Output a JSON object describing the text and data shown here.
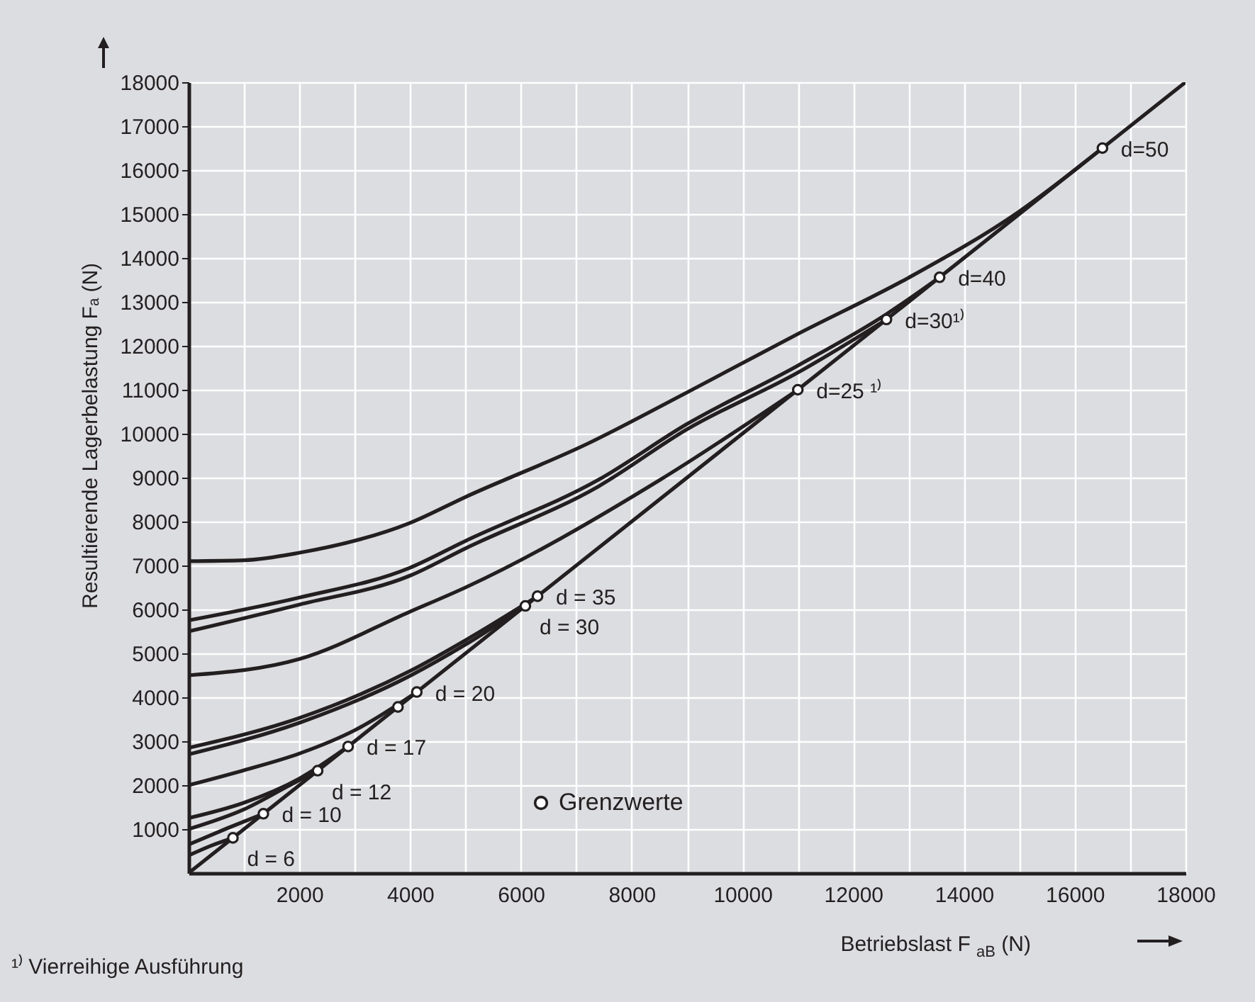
{
  "chart_data": {
    "type": "line",
    "xlabel": "Betriebslast  F$_{aB}$ (N)",
    "ylabel": "Resultierende Lagerbelastung  Fₐ (N)",
    "xlim": [
      0,
      18000
    ],
    "ylim": [
      0,
      18000
    ],
    "xticks": [
      {
        "value": 1000,
        "label": null
      },
      2000,
      {
        "value": 3000,
        "label": null
      },
      4000,
      {
        "value": 5000,
        "label": null
      },
      6000,
      {
        "value": 7000,
        "label": null
      },
      8000,
      {
        "value": 9000,
        "label": null
      },
      10000,
      {
        "value": 11000,
        "label": null
      },
      12000,
      {
        "value": 13000,
        "label": null
      },
      14000,
      {
        "value": 15000,
        "label": null
      },
      16000,
      {
        "value": 17000,
        "label": null
      },
      18000
    ],
    "yticks": [
      1000,
      2000,
      3000,
      4000,
      5000,
      6000,
      7000,
      8000,
      9000,
      10000,
      11000,
      12000,
      13000,
      14000,
      15000,
      16000,
      17000,
      18000
    ],
    "grid": true,
    "legend": "bottom",
    "line_style": "solid",
    "series": [
      {
        "color": "#231f20",
        "x": [
          0,
          18000
        ],
        "values": [
          0,
          18000
        ]
      },
      {
        "color": "#231f20",
        "x": [
          0,
          400,
          800
        ],
        "values": [
          400,
          620,
          800
        ]
      },
      {
        "color": "#231f20",
        "x": [
          0,
          700,
          1350
        ],
        "values": [
          650,
          1020,
          1350
        ]
      },
      {
        "color": "#231f20",
        "x": [
          0,
          1000,
          1800,
          2330
        ],
        "values": [
          1000,
          1450,
          1980,
          2330
        ]
      },
      {
        "color": "#231f20",
        "x": [
          0,
          1000,
          2000,
          2880
        ],
        "values": [
          1250,
          1600,
          2150,
          2880
        ]
      },
      {
        "color": "#231f20",
        "x": [
          0,
          1000,
          2000,
          3000,
          4120
        ],
        "values": [
          2000,
          2340,
          2720,
          3250,
          4120
        ]
      },
      {
        "color": "#231f20",
        "x": [
          0,
          2000,
          4000,
          5000,
          6080
        ],
        "values": [
          2700,
          3420,
          4490,
          5200,
          6080
        ]
      },
      {
        "color": "#231f20",
        "x": [
          0,
          2000,
          4000,
          5000,
          6300
        ],
        "values": [
          2850,
          3530,
          4600,
          5300,
          6300
        ]
      },
      {
        "color": "#231f20",
        "x": [
          0,
          2000,
          4000,
          5000,
          8500,
          11000
        ],
        "values": [
          4500,
          4870,
          5950,
          6500,
          8940,
          11000
        ]
      },
      {
        "color": "#231f20",
        "x": [
          0,
          2000,
          4000,
          5000,
          7400,
          9000,
          11000,
          12600
        ],
        "values": [
          5500,
          6110,
          6770,
          7390,
          8800,
          10100,
          11390,
          12600
        ]
      },
      {
        "color": "#231f20",
        "x": [
          0,
          2000,
          4000,
          5000,
          7400,
          9000,
          11000,
          12600,
          13560
        ],
        "values": [
          5750,
          6270,
          6950,
          7560,
          8950,
          10220,
          11550,
          12720,
          13560
        ]
      },
      {
        "color": "#231f20",
        "x": [
          0,
          1000,
          2000,
          4000,
          5000,
          7200,
          9000,
          11000,
          13000,
          15000,
          16500
        ],
        "values": [
          7100,
          7120,
          7290,
          7970,
          8560,
          9770,
          10940,
          12270,
          13550,
          15060,
          16500
        ]
      },
      {
        "type": "scatter",
        "name": "Grenzwerte",
        "color": "#ffffff",
        "marker": "circle",
        "x": [
          800,
          1350,
          2330,
          2880,
          3780,
          4120,
          6080,
          6300,
          11000,
          12600,
          13560,
          16500
        ],
        "values": [
          800,
          1350,
          2330,
          2880,
          3780,
          4120,
          6080,
          6300,
          11000,
          12600,
          13560,
          16500
        ]
      }
    ],
    "annotations": [
      {
        "text": "d = 6",
        "x": 800,
        "y": 800
      },
      {
        "text": "d = 10",
        "x": 1350,
        "y": 1350
      },
      {
        "text": "d = 12",
        "x": 2330,
        "y": 2330
      },
      {
        "text": "d = 17",
        "x": 2880,
        "y": 2880
      },
      {
        "text": "d = 20",
        "x": 4120,
        "y": 4120
      },
      {
        "text": "d = 30",
        "x": 6080,
        "y": 6080
      },
      {
        "text": "d = 35",
        "x": 6300,
        "y": 6300
      },
      {
        "text": "d=25 ¹⁾",
        "x": 11000,
        "y": 11000
      },
      {
        "text": "d=30¹⁾",
        "x": 12600,
        "y": 12600
      },
      {
        "text": "d=40",
        "x": 13560,
        "y": 13560
      },
      {
        "text": "d=50",
        "x": 16500,
        "y": 16500
      },
      "¹⁾ Vierreihige Ausführung"
    ]
  }
}
